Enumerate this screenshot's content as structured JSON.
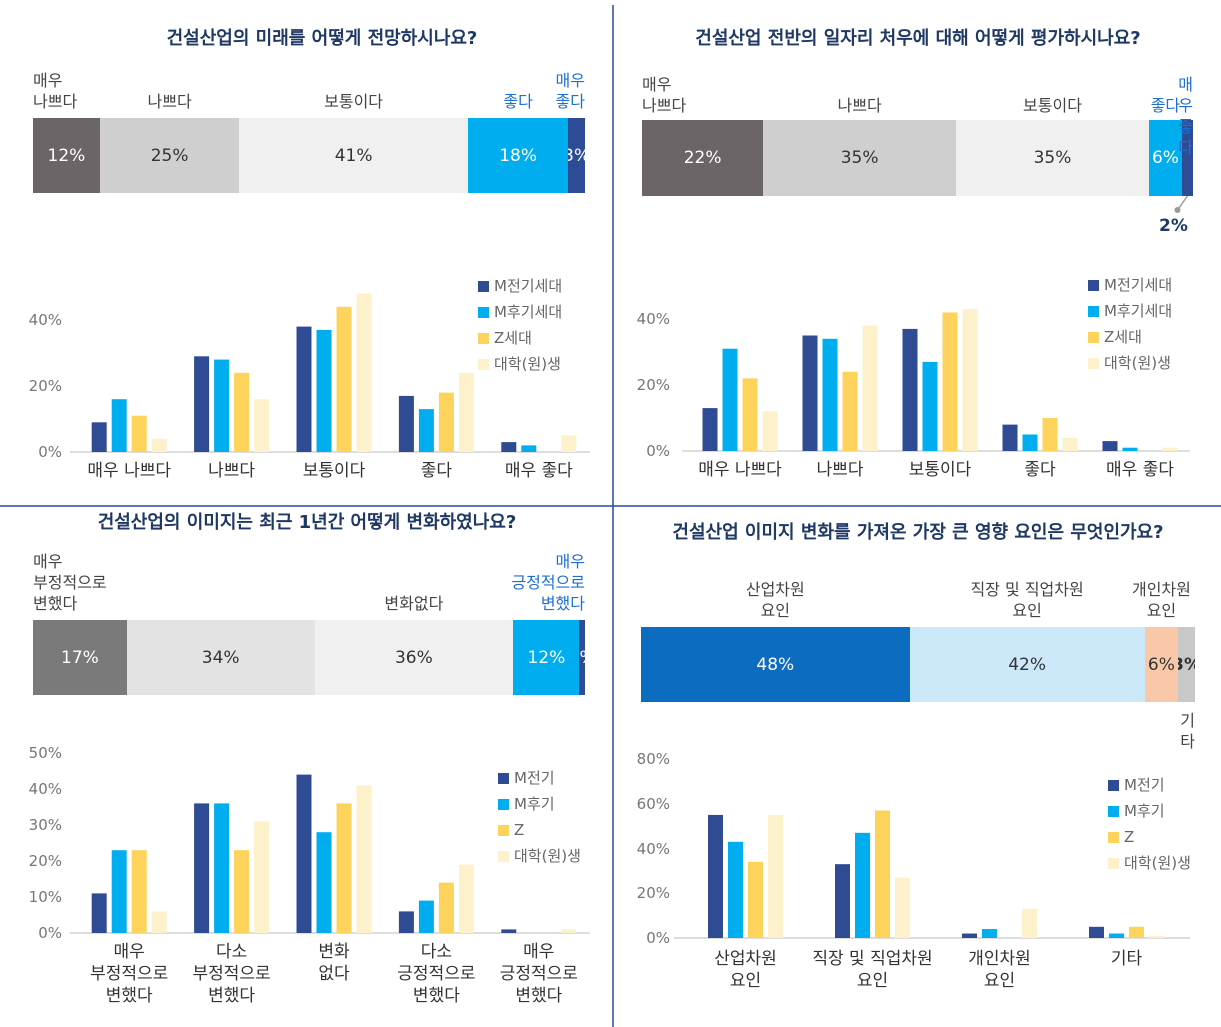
{
  "chart_data": [
    {
      "type": "stacked_bar",
      "title": "건설산업의 미래를 어떻게 전망하시나요?",
      "categories": [
        "매우\n나쁘다",
        "나쁘다",
        "보통이다",
        "좋다",
        "매우\n좋다"
      ],
      "values": [
        12,
        25,
        41,
        18,
        3
      ],
      "value_labels": [
        "12%",
        "25%",
        "41%",
        "18%",
        "3%"
      ],
      "colors": [
        "#6b6567",
        "#cfcfcf",
        "#f0f0f0",
        "#00aeef",
        "#2e4c96"
      ]
    },
    {
      "type": "bar",
      "categories": [
        "매우 나쁘다",
        "나쁘다",
        "보통이다",
        "좋다",
        "매우 좋다"
      ],
      "series": [
        {
          "name": "M전기세대",
          "color": "#2e4b94",
          "values": [
            9,
            29,
            38,
            17,
            3
          ]
        },
        {
          "name": "M후기세대",
          "color": "#00aeef",
          "values": [
            16,
            28,
            37,
            13,
            2
          ]
        },
        {
          "name": "Z세대",
          "color": "#fdd35c",
          "values": [
            11,
            24,
            44,
            18,
            0
          ]
        },
        {
          "name": "대학(원)생",
          "color": "#fdf1cc",
          "values": [
            4,
            16,
            48,
            24,
            5
          ]
        }
      ],
      "ylim": [
        0,
        50
      ],
      "yticks": [
        {
          "value": 0,
          "label": "0%"
        },
        {
          "value": 20,
          "label": "20%"
        },
        {
          "value": 40,
          "label": "40%"
        }
      ]
    },
    {
      "type": "stacked_bar",
      "title": "건설산업 전반의 일자리 처우에 대해 어떻게 평가하시나요?",
      "categories": [
        "매우\n나쁘다",
        "나쁘다",
        "보통이다",
        "좋다",
        "매우\n좋다"
      ],
      "values": [
        22,
        35,
        35,
        6,
        2
      ],
      "value_labels": [
        "22%",
        "35%",
        "35%",
        "6%",
        "2%"
      ],
      "colors": [
        "#6b6567",
        "#cfcfcf",
        "#f0f0f0",
        "#00aeef",
        "#2e4c96"
      ]
    },
    {
      "type": "bar",
      "categories": [
        "매우 나쁘다",
        "나쁘다",
        "보통이다",
        "좋다",
        "매우 좋다"
      ],
      "series": [
        {
          "name": "M전기세대",
          "color": "#2e4b94",
          "values": [
            13,
            35,
            37,
            8,
            3
          ]
        },
        {
          "name": "M후기세대",
          "color": "#00aeef",
          "values": [
            31,
            34,
            27,
            5,
            1
          ]
        },
        {
          "name": "Z세대",
          "color": "#fdd35c",
          "values": [
            22,
            24,
            42,
            10,
            0
          ]
        },
        {
          "name": "대학(원)생",
          "color": "#fdf1cc",
          "values": [
            12,
            38,
            43,
            4,
            1
          ]
        }
      ],
      "ylim": [
        0,
        50
      ],
      "yticks": [
        {
          "value": 0,
          "label": "0%"
        },
        {
          "value": 20,
          "label": "20%"
        },
        {
          "value": 40,
          "label": "40%"
        }
      ]
    },
    {
      "type": "stacked_bar",
      "title": "건설산업의 이미지는 최근 1년간 어떻게 변화하였나요?",
      "categories": [
        "매우\n부정적으로\n변했다",
        null,
        "변화없다",
        null,
        "매우\n긍정적으로\n변했다"
      ],
      "values": [
        17,
        34,
        36,
        12,
        1
      ],
      "value_labels": [
        "17%",
        "34%",
        "36%",
        "12%",
        "1%"
      ],
      "colors": [
        "#7a7a7a",
        "#e3e3e3",
        "#f0f0f0",
        "#00aeef",
        "#2e4c96"
      ]
    },
    {
      "type": "bar",
      "categories": [
        "매우\n부정적으로\n변했다",
        "다소\n부정적으로\n변했다",
        "변화\n없다",
        "다소\n긍정적으로\n변했다",
        "매우\n긍정적으로\n변했다"
      ],
      "series": [
        {
          "name": "M전기",
          "color": "#2e4b94",
          "values": [
            11,
            36,
            44,
            6,
            1
          ]
        },
        {
          "name": "M후기",
          "color": "#00aeef",
          "values": [
            23,
            36,
            28,
            9,
            0
          ]
        },
        {
          "name": "Z",
          "color": "#fdd35c",
          "values": [
            23,
            23,
            36,
            14,
            0
          ]
        },
        {
          "name": "대학(원)생",
          "color": "#fdf1cc",
          "values": [
            6,
            31,
            41,
            19,
            1
          ]
        }
      ],
      "ylim": [
        0,
        50
      ],
      "yticks": [
        {
          "value": 0,
          "label": "0%"
        },
        {
          "value": 10,
          "label": "10%"
        },
        {
          "value": 20,
          "label": "20%"
        },
        {
          "value": 30,
          "label": "30%"
        },
        {
          "value": 40,
          "label": "40%"
        },
        {
          "value": 50,
          "label": "50%"
        }
      ]
    },
    {
      "type": "stacked_bar",
      "title": "건설산업 이미지 변화를 가져온 가장 큰 영향 요인은 무엇인가요?",
      "categories": [
        "산업차원\n요인",
        "직장 및 직업차원\n요인",
        "개인차원\n요인",
        "기타"
      ],
      "values": [
        48,
        42,
        6,
        3
      ],
      "value_labels": [
        "48%",
        "42%",
        "6%",
        "3%"
      ],
      "colors": [
        "#0b6cc0",
        "#cce9f9",
        "#f9c8a8",
        "#c8c8c8"
      ]
    },
    {
      "type": "bar",
      "categories": [
        "산업차원\n요인",
        "직장 및 직업차원\n요인",
        "개인차원\n요인",
        "기타"
      ],
      "series": [
        {
          "name": "M전기",
          "color": "#2e4b94",
          "values": [
            55,
            33,
            2,
            5
          ]
        },
        {
          "name": "M후기",
          "color": "#00aeef",
          "values": [
            43,
            47,
            4,
            2
          ]
        },
        {
          "name": "Z",
          "color": "#fdd35c",
          "values": [
            34,
            57,
            0,
            5
          ]
        },
        {
          "name": "대학(원)생",
          "color": "#fdf1cc",
          "values": [
            55,
            27,
            13,
            1
          ]
        }
      ],
      "ylim": [
        0,
        80
      ],
      "yticks": [
        {
          "value": 0,
          "label": "0%"
        },
        {
          "value": 20,
          "label": "20%"
        },
        {
          "value": 40,
          "label": "40%"
        },
        {
          "value": 60,
          "label": "60%"
        },
        {
          "value": 80,
          "label": "80%"
        }
      ]
    }
  ]
}
